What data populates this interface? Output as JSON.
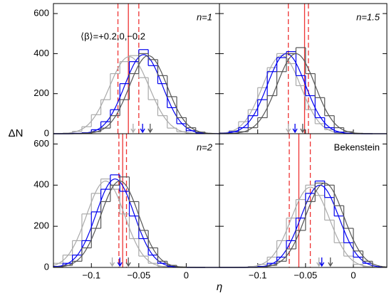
{
  "figure": {
    "xlabel": "η",
    "ylabel": "ΔN"
  },
  "chart_data": [
    {
      "type": "histogram",
      "label": "n=1",
      "annotation": "⟨β⟩=+0.2,0,−0.2",
      "xlim": [
        -0.14,
        0.035
      ],
      "ylim": [
        0,
        650
      ],
      "xticks": [
        {
          "value": -0.1,
          "label": "−0.1"
        },
        {
          "value": -0.05,
          "label": "−0.05"
        },
        0
      ],
      "yticks": [
        0,
        200,
        400,
        600
      ],
      "bins": [
        -0.14,
        -0.13,
        -0.12,
        -0.11,
        -0.1,
        -0.09,
        -0.08,
        -0.07,
        -0.06,
        -0.05,
        -0.04,
        -0.03,
        -0.02,
        -0.01,
        0,
        0.01,
        0.02
      ],
      "ref_line": -0.061,
      "ref_dashed": [
        -0.072,
        -0.05
      ],
      "ref_color": "#ee3333",
      "series": [
        {
          "color": "#aaaaaa",
          "values": [
            0,
            3,
            12,
            35,
            95,
            170,
            300,
            360,
            390,
            280,
            170,
            90,
            28,
            10,
            2,
            0
          ],
          "mean": -0.06,
          "sigma": 0.021,
          "peak": 385,
          "arrow": -0.056
        },
        {
          "color": "#0000ee",
          "values": [
            0,
            0,
            2,
            5,
            20,
            60,
            120,
            250,
            360,
            420,
            340,
            250,
            130,
            50,
            15,
            4
          ],
          "mean": -0.045,
          "sigma": 0.02,
          "peak": 395,
          "arrow": -0.046
        },
        {
          "color": "#555555",
          "values": [
            0,
            0,
            0,
            3,
            10,
            28,
            90,
            170,
            300,
            400,
            370,
            290,
            185,
            80,
            30,
            8
          ],
          "mean": -0.04,
          "sigma": 0.02,
          "peak": 390,
          "arrow": -0.038
        }
      ]
    },
    {
      "type": "histogram",
      "label": "n=1.5",
      "xlim": [
        -0.14,
        0.035
      ],
      "ylim": [
        0,
        650
      ],
      "xticks": [
        {
          "value": -0.1,
          "label": "−0.1"
        },
        {
          "value": -0.05,
          "label": "−0.05"
        },
        0
      ],
      "yticks": [
        0,
        200,
        400,
        600
      ],
      "bins": [
        -0.14,
        -0.13,
        -0.12,
        -0.11,
        -0.1,
        -0.09,
        -0.08,
        -0.07,
        -0.06,
        -0.05,
        -0.04,
        -0.03,
        -0.02,
        -0.01,
        0,
        0.01,
        0.02
      ],
      "ref_line": -0.051,
      "ref_dashed": [
        -0.068,
        -0.047
      ],
      "ref_color": "#ee3333",
      "series": [
        {
          "color": "#aaaaaa",
          "values": [
            5,
            15,
            60,
            120,
            230,
            330,
            400,
            350,
            240,
            120,
            50,
            20,
            5,
            1,
            0,
            0
          ],
          "mean": -0.075,
          "sigma": 0.02,
          "peak": 390,
          "arrow": -0.068
        },
        {
          "color": "#0000ee",
          "values": [
            2,
            10,
            30,
            90,
            170,
            310,
            380,
            410,
            290,
            190,
            80,
            30,
            8,
            2,
            0,
            0
          ],
          "mean": -0.07,
          "sigma": 0.02,
          "peak": 400,
          "arrow": -0.061
        },
        {
          "color": "#555555",
          "values": [
            0,
            2,
            10,
            30,
            80,
            190,
            310,
            400,
            430,
            300,
            180,
            90,
            30,
            10,
            2,
            0
          ],
          "mean": -0.06,
          "sigma": 0.02,
          "peak": 400,
          "arrow": -0.053
        }
      ]
    },
    {
      "type": "histogram",
      "label": "n=2",
      "xlim": [
        -0.14,
        0.035
      ],
      "ylim": [
        0,
        650
      ],
      "xticks": [
        {
          "value": -0.1,
          "label": "−0.1"
        },
        {
          "value": -0.05,
          "label": "−0.05"
        },
        0
      ],
      "yticks": [
        0,
        200,
        400,
        600
      ],
      "bins": [
        -0.14,
        -0.13,
        -0.12,
        -0.11,
        -0.1,
        -0.09,
        -0.08,
        -0.07,
        -0.06,
        -0.05,
        -0.04,
        -0.03,
        -0.02,
        -0.01,
        0,
        0.01,
        0.02
      ],
      "ref_line": -0.067,
      "ref_dashed": [
        -0.071,
        -0.063
      ],
      "ref_color": "#ee3333",
      "series": [
        {
          "color": "#aaaaaa",
          "values": [
            20,
            60,
            130,
            260,
            360,
            430,
            380,
            260,
            140,
            55,
            20,
            5,
            1,
            0,
            0,
            0
          ],
          "mean": -0.085,
          "sigma": 0.02,
          "peak": 420,
          "arrow": -0.078
        },
        {
          "color": "#0000ee",
          "values": [
            5,
            20,
            60,
            130,
            270,
            380,
            450,
            370,
            250,
            140,
            60,
            20,
            5,
            1,
            0,
            0
          ],
          "mean": -0.075,
          "sigma": 0.02,
          "peak": 430,
          "arrow": -0.07
        },
        {
          "color": "#555555",
          "values": [
            2,
            10,
            30,
            95,
            190,
            320,
            400,
            440,
            320,
            180,
            95,
            30,
            10,
            2,
            0,
            0
          ],
          "mean": -0.07,
          "sigma": 0.02,
          "peak": 420,
          "arrow": -0.061
        }
      ]
    },
    {
      "type": "histogram",
      "label": "Bekenstein",
      "xlim": [
        -0.14,
        0.035
      ],
      "ylim": [
        0,
        650
      ],
      "xticks": [
        {
          "value": -0.1,
          "label": "−0.1"
        },
        {
          "value": -0.05,
          "label": "−0.05"
        },
        0
      ],
      "yticks": [
        0,
        200,
        400,
        600
      ],
      "bins": [
        -0.14,
        -0.13,
        -0.12,
        -0.11,
        -0.1,
        -0.09,
        -0.08,
        -0.07,
        -0.06,
        -0.05,
        -0.04,
        -0.03,
        -0.02,
        -0.01,
        0,
        0.01,
        0.02
      ],
      "ref_line": -0.057,
      "ref_dashed": [
        -0.067,
        -0.045
      ],
      "ref_color": "#ee3333",
      "series": [
        {
          "color": "#aaaaaa",
          "values": [
            0,
            0,
            1,
            5,
            15,
            50,
            130,
            240,
            330,
            400,
            350,
            230,
            120,
            55,
            15,
            4
          ],
          "mean": -0.045,
          "sigma": 0.02,
          "peak": 390,
          "arrow": -0.036
        },
        {
          "color": "#0000ee",
          "values": [
            0,
            0,
            0,
            1,
            5,
            20,
            50,
            130,
            240,
            360,
            420,
            340,
            250,
            120,
            50,
            20
          ],
          "mean": -0.035,
          "sigma": 0.02,
          "peak": 400,
          "arrow": -0.033
        },
        {
          "color": "#555555",
          "values": [
            0,
            0,
            0,
            0,
            2,
            10,
            30,
            90,
            180,
            320,
            410,
            400,
            300,
            190,
            80,
            30
          ],
          "mean": -0.03,
          "sigma": 0.02,
          "peak": 410,
          "arrow": -0.024
        }
      ]
    }
  ]
}
